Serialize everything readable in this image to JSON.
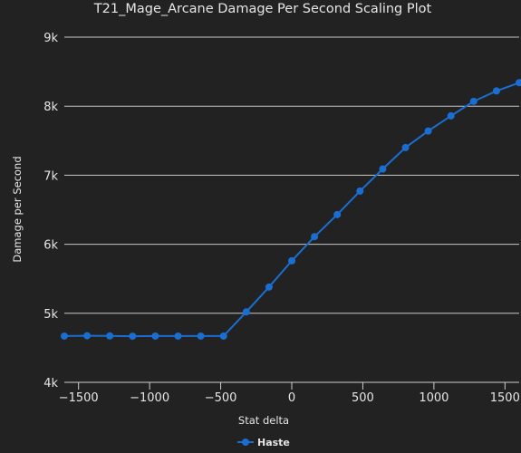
{
  "chart_data": {
    "type": "line",
    "title": "T21_Mage_Arcane Damage Per Second Scaling Plot",
    "xlabel": "Stat delta",
    "ylabel": "Damage per Second",
    "xlim": [
      -1600,
      1600
    ],
    "ylim": [
      4000,
      9000
    ],
    "x_ticks": [
      -1500,
      -1000,
      -500,
      0,
      500,
      1000,
      1500
    ],
    "x_tick_labels": [
      "−1500",
      "−1000",
      "−500",
      "0",
      "500",
      "1000",
      "1500"
    ],
    "y_ticks": [
      4000,
      5000,
      6000,
      7000,
      8000,
      9000
    ],
    "y_tick_labels": [
      "4k",
      "5k",
      "6k",
      "7k",
      "8k",
      "9k"
    ],
    "grid": "horizontal",
    "legend_position": "bottom-center",
    "colors": {
      "background": "#222222",
      "series": "#1b6ed1",
      "text": "#e6e6e6"
    },
    "series": [
      {
        "name": "Haste",
        "x": [
          -1600,
          -1440,
          -1280,
          -1120,
          -960,
          -800,
          -640,
          -480,
          -320,
          -160,
          0,
          160,
          320,
          480,
          640,
          800,
          960,
          1120,
          1280,
          1440,
          1600
        ],
        "y": [
          4670,
          4675,
          4672,
          4668,
          4670,
          4670,
          4670,
          4670,
          5020,
          5380,
          5760,
          6110,
          6430,
          6770,
          7090,
          7400,
          7640,
          7860,
          8070,
          8220,
          8340
        ]
      }
    ]
  }
}
